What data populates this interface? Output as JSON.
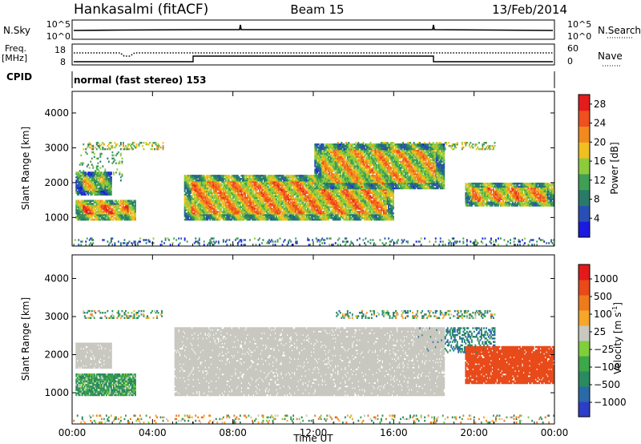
{
  "header": {
    "title": "Hankasalmi (fitACF)",
    "beam": "Beam 15",
    "date": "13/Feb/2014"
  },
  "status_panels": {
    "nsky": {
      "label": "N.Sky",
      "top_tick": "10^5",
      "bottom_tick": "10^0"
    },
    "nsearch": {
      "label": "N.Search",
      "top_tick": "10^5",
      "bottom_tick": "10^0"
    },
    "freq": {
      "label_line1": "Freq.",
      "label_line2": "[MHz]",
      "top_tick": "18",
      "bottom_tick": "8"
    },
    "nave": {
      "label": "Nave",
      "top_tick": "60",
      "bottom_tick": "0"
    },
    "cpid": {
      "label": "CPID",
      "text": "normal (fast stereo) 153"
    }
  },
  "chart_data": [
    {
      "type": "heatmap",
      "title": "",
      "xlabel": "Time UT",
      "ylabel": "Slant Range [km]",
      "x_ticks": [
        "00:00",
        "04:00",
        "08:00",
        "12:00",
        "16:00",
        "20:00",
        "00:00"
      ],
      "y_ticks": [
        "1000",
        "2000",
        "3000",
        "4000"
      ],
      "xlim_hours": [
        0,
        24
      ],
      "ylim_km": [
        180,
        4620
      ],
      "colorbar": {
        "label": "Power [dB]",
        "ticks": [
          "4",
          "8",
          "12",
          "16",
          "20",
          "24",
          "28"
        ],
        "range": [
          0,
          30
        ],
        "colors": [
          "#1a1ae0",
          "#2850b4",
          "#2a7a6a",
          "#3f9f55",
          "#8ccc3c",
          "#f0c020",
          "#f08a20",
          "#ef5020",
          "#e51c1c"
        ]
      },
      "regions": [
        {
          "label": "early backscatter",
          "t0": 0.1,
          "t1": 3.2,
          "r0": 900,
          "r1": 1500,
          "level": 28
        },
        {
          "label": "early band",
          "t0": 0.1,
          "t1": 2.0,
          "r0": 1600,
          "r1": 2300,
          "level": 22
        },
        {
          "label": "main echo",
          "t0": 5.5,
          "t1": 16.0,
          "r0": 900,
          "r1": 2200,
          "level": 26
        },
        {
          "label": "upper echo",
          "t0": 12.0,
          "t1": 18.5,
          "r0": 1800,
          "r1": 3100,
          "level": 24
        },
        {
          "label": "late echo",
          "t0": 19.5,
          "t1": 24.0,
          "r0": 1300,
          "r1": 2000,
          "level": 26
        }
      ]
    },
    {
      "type": "heatmap",
      "title": "",
      "xlabel": "Time UT",
      "ylabel": "Slant Range [km]",
      "x_ticks": [
        "00:00",
        "04:00",
        "08:00",
        "12:00",
        "16:00",
        "20:00",
        "00:00"
      ],
      "y_ticks": [
        "1000",
        "2000",
        "3000",
        "4000"
      ],
      "xlim_hours": [
        0,
        24
      ],
      "ylim_km": [
        180,
        4620
      ],
      "colorbar": {
        "label_main": "Velocity [m s",
        "label_exp": "-1",
        "label_end": "]",
        "ticks": [
          "1000",
          "500",
          "100",
          "25",
          "−25",
          "−100",
          "−500",
          "−1000"
        ],
        "colors": [
          "#2c3ec8",
          "#2a6aa8",
          "#2a8a60",
          "#3da84a",
          "#7fcf3c",
          "#c8c8c0",
          "#f6a628",
          "#ee7a1c",
          "#e84a1a",
          "#e21a1a"
        ]
      },
      "regions": [
        {
          "label": "ground scatter",
          "t0": 5.0,
          "t1": 18.5,
          "r0": 900,
          "r1": 2700,
          "velocity": 0
        },
        {
          "label": "early ground scatter",
          "t0": 0.1,
          "t1": 2.0,
          "r0": 1600,
          "r1": 2300,
          "velocity": 0
        },
        {
          "label": "early positive flow",
          "t0": 0.1,
          "t1": 3.2,
          "r0": 900,
          "r1": 1500,
          "velocity": 100
        },
        {
          "label": "late negative flow",
          "t0": 19.5,
          "t1": 24.0,
          "r0": 1200,
          "r1": 2200,
          "velocity": -500
        }
      ]
    }
  ]
}
